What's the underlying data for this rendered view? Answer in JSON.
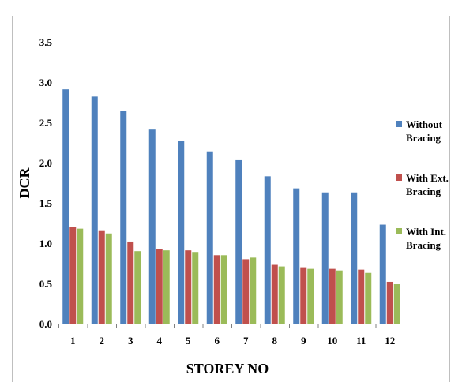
{
  "chart_data": {
    "type": "bar",
    "title": "",
    "xlabel": "STOREY NO",
    "ylabel": "DCR",
    "ylim": [
      0,
      3.5
    ],
    "yticks": [
      "0.0",
      "0.5",
      "1.0",
      "1.5",
      "2.0",
      "2.5",
      "3.0",
      "3.5"
    ],
    "grid": false,
    "legend_position": "right",
    "categories": [
      "1",
      "2",
      "3",
      "4",
      "5",
      "6",
      "7",
      "8",
      "9",
      "10",
      "11",
      "12"
    ],
    "series": [
      {
        "name": "Without Bracing",
        "legend_lines": [
          "Without",
          "Bracing"
        ],
        "color": "#4F81BD",
        "values": [
          2.91,
          2.82,
          2.64,
          2.41,
          2.27,
          2.14,
          2.03,
          1.83,
          1.68,
          1.63,
          1.63,
          1.23
        ]
      },
      {
        "name": "With Ext. Bracing",
        "legend_lines": [
          "With Ext.",
          "Bracing"
        ],
        "color": "#C0504D",
        "values": [
          1.2,
          1.15,
          1.02,
          0.93,
          0.91,
          0.85,
          0.8,
          0.73,
          0.7,
          0.68,
          0.67,
          0.52
        ]
      },
      {
        "name": "With Int. Bracing",
        "legend_lines": [
          "With Int.",
          "Bracing"
        ],
        "color": "#9BBB59",
        "values": [
          1.18,
          1.12,
          0.9,
          0.91,
          0.89,
          0.85,
          0.82,
          0.71,
          0.68,
          0.66,
          0.63,
          0.49
        ]
      }
    ]
  }
}
